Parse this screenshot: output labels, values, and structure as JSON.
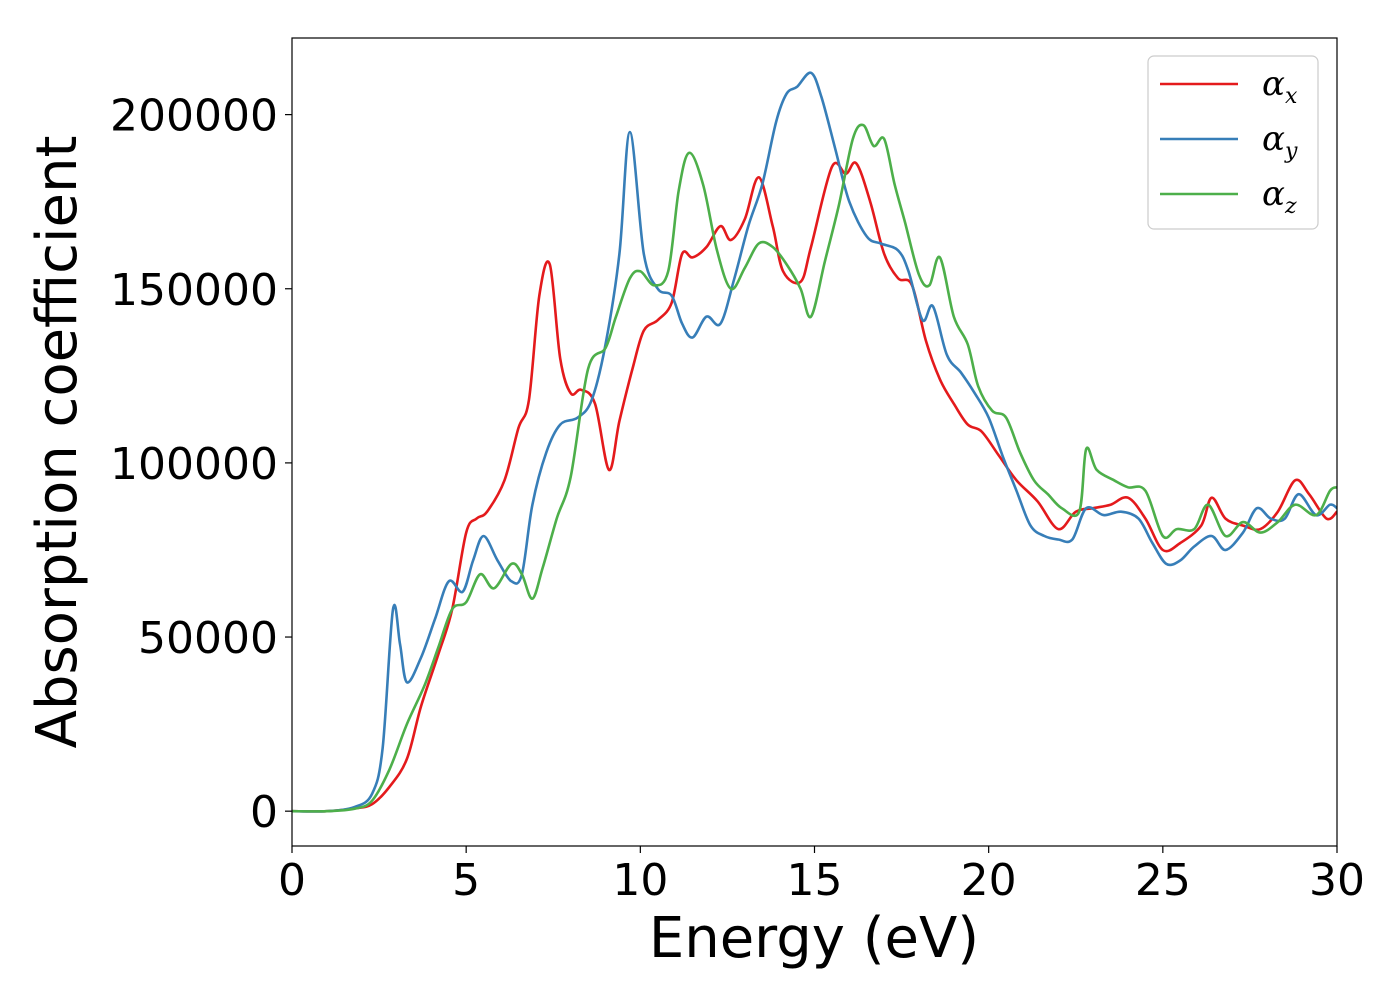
{
  "chart_data": {
    "type": "line",
    "title": "",
    "xlabel": "Energy (eV)",
    "ylabel": "Absorption coefficient",
    "xlim": [
      0,
      30
    ],
    "ylim": [
      -10000,
      222000
    ],
    "xticks": [
      0,
      5,
      10,
      15,
      20,
      25,
      30
    ],
    "yticks": [
      0,
      50000,
      100000,
      150000,
      200000
    ],
    "xtick_labels": [
      "0",
      "5",
      "10",
      "15",
      "20",
      "25",
      "30"
    ],
    "ytick_labels": [
      "0",
      "50000",
      "100000",
      "150000",
      "200000"
    ],
    "grid": false,
    "legend_position": "top-right",
    "series": [
      {
        "name": "αx",
        "legend_base": "α",
        "legend_sub": "x",
        "color": "#e41a1c",
        "points": [
          [
            0,
            0
          ],
          [
            1,
            0
          ],
          [
            1.8,
            800
          ],
          [
            2.3,
            2000
          ],
          [
            2.8,
            7000
          ],
          [
            3.3,
            15000
          ],
          [
            3.7,
            30000
          ],
          [
            4.2,
            45000
          ],
          [
            4.6,
            58000
          ],
          [
            5,
            80000
          ],
          [
            5.3,
            84000
          ],
          [
            5.6,
            86000
          ],
          [
            6.1,
            95000
          ],
          [
            6.5,
            110000
          ],
          [
            6.8,
            118000
          ],
          [
            7.1,
            148000
          ],
          [
            7.4,
            157000
          ],
          [
            7.7,
            130000
          ],
          [
            8,
            120000
          ],
          [
            8.3,
            121000
          ],
          [
            8.7,
            117000
          ],
          [
            9.1,
            98000
          ],
          [
            9.4,
            112000
          ],
          [
            9.8,
            128000
          ],
          [
            10.1,
            138000
          ],
          [
            10.5,
            141000
          ],
          [
            10.9,
            146000
          ],
          [
            11.2,
            160000
          ],
          [
            11.5,
            159000
          ],
          [
            11.9,
            162000
          ],
          [
            12.3,
            168000
          ],
          [
            12.6,
            164000
          ],
          [
            13,
            170000
          ],
          [
            13.4,
            182000
          ],
          [
            13.8,
            168000
          ],
          [
            14.1,
            155000
          ],
          [
            14.6,
            152000
          ],
          [
            14.9,
            162000
          ],
          [
            15.5,
            185000
          ],
          [
            15.9,
            183000
          ],
          [
            16.2,
            186000
          ],
          [
            16.6,
            175000
          ],
          [
            17,
            160000
          ],
          [
            17.4,
            153000
          ],
          [
            17.8,
            151000
          ],
          [
            18.2,
            135000
          ],
          [
            18.6,
            124000
          ],
          [
            19,
            117000
          ],
          [
            19.4,
            111000
          ],
          [
            19.8,
            109000
          ],
          [
            20.3,
            102000
          ],
          [
            20.8,
            95000
          ],
          [
            21.4,
            89000
          ],
          [
            22,
            81000
          ],
          [
            22.5,
            86000
          ],
          [
            23,
            87000
          ],
          [
            23.5,
            88000
          ],
          [
            24,
            90000
          ],
          [
            24.5,
            84000
          ],
          [
            25,
            75000
          ],
          [
            25.5,
            77000
          ],
          [
            26.1,
            82000
          ],
          [
            26.4,
            90000
          ],
          [
            26.8,
            84000
          ],
          [
            27.3,
            82000
          ],
          [
            27.8,
            81000
          ],
          [
            28.3,
            86000
          ],
          [
            28.8,
            95000
          ],
          [
            29.2,
            91000
          ],
          [
            29.7,
            84000
          ],
          [
            30,
            86000
          ]
        ]
      },
      {
        "name": "αy",
        "legend_base": "α",
        "legend_sub": "y",
        "color": "#377eb8",
        "points": [
          [
            0,
            0
          ],
          [
            1,
            0
          ],
          [
            1.8,
            1200
          ],
          [
            2.3,
            5000
          ],
          [
            2.6,
            18000
          ],
          [
            2.9,
            58000
          ],
          [
            3.1,
            48000
          ],
          [
            3.3,
            37000
          ],
          [
            3.7,
            44000
          ],
          [
            4.1,
            55000
          ],
          [
            4.5,
            66000
          ],
          [
            4.9,
            63000
          ],
          [
            5.2,
            72000
          ],
          [
            5.5,
            79000
          ],
          [
            5.9,
            72000
          ],
          [
            6.3,
            66000
          ],
          [
            6.6,
            68000
          ],
          [
            6.9,
            88000
          ],
          [
            7.3,
            103000
          ],
          [
            7.7,
            111000
          ],
          [
            8.2,
            113000
          ],
          [
            8.6,
            118000
          ],
          [
            9,
            134000
          ],
          [
            9.4,
            160000
          ],
          [
            9.7,
            195000
          ],
          [
            10.1,
            160000
          ],
          [
            10.5,
            150000
          ],
          [
            10.9,
            148000
          ],
          [
            11.2,
            140000
          ],
          [
            11.5,
            136000
          ],
          [
            11.9,
            142000
          ],
          [
            12.3,
            140000
          ],
          [
            12.7,
            153000
          ],
          [
            13.1,
            168000
          ],
          [
            13.5,
            180000
          ],
          [
            13.9,
            198000
          ],
          [
            14.2,
            206000
          ],
          [
            14.5,
            208000
          ],
          [
            14.9,
            212000
          ],
          [
            15.2,
            205000
          ],
          [
            15.6,
            190000
          ],
          [
            16,
            175000
          ],
          [
            16.5,
            165000
          ],
          [
            16.9,
            163000
          ],
          [
            17.4,
            161000
          ],
          [
            17.7,
            155000
          ],
          [
            18.1,
            141000
          ],
          [
            18.4,
            145000
          ],
          [
            18.8,
            131000
          ],
          [
            19.2,
            126000
          ],
          [
            19.6,
            120000
          ],
          [
            20,
            113000
          ],
          [
            20.4,
            102000
          ],
          [
            20.8,
            92000
          ],
          [
            21.2,
            82000
          ],
          [
            21.6,
            79000
          ],
          [
            22,
            78000
          ],
          [
            22.4,
            78000
          ],
          [
            22.8,
            87000
          ],
          [
            23.3,
            85000
          ],
          [
            23.8,
            86000
          ],
          [
            24.3,
            84000
          ],
          [
            24.7,
            77000
          ],
          [
            25.1,
            71000
          ],
          [
            25.5,
            72000
          ],
          [
            25.9,
            76000
          ],
          [
            26.4,
            79000
          ],
          [
            26.8,
            75000
          ],
          [
            27.3,
            80000
          ],
          [
            27.7,
            87000
          ],
          [
            28.1,
            84000
          ],
          [
            28.5,
            84000
          ],
          [
            28.9,
            91000
          ],
          [
            29.4,
            85000
          ],
          [
            29.8,
            88000
          ],
          [
            30,
            87000
          ]
        ]
      },
      {
        "name": "αz",
        "legend_base": "α",
        "legend_sub": "z",
        "color": "#4daf4a",
        "points": [
          [
            0,
            0
          ],
          [
            1,
            0
          ],
          [
            1.8,
            700
          ],
          [
            2.3,
            3000
          ],
          [
            2.8,
            12000
          ],
          [
            3.3,
            25000
          ],
          [
            3.8,
            36000
          ],
          [
            4.2,
            47000
          ],
          [
            4.6,
            58000
          ],
          [
            5,
            60000
          ],
          [
            5.4,
            68000
          ],
          [
            5.8,
            64000
          ],
          [
            6.3,
            71000
          ],
          [
            6.6,
            68000
          ],
          [
            6.9,
            61000
          ],
          [
            7.2,
            70000
          ],
          [
            7.6,
            84000
          ],
          [
            8,
            96000
          ],
          [
            8.5,
            127000
          ],
          [
            9,
            133000
          ],
          [
            9.3,
            142000
          ],
          [
            9.7,
            153000
          ],
          [
            10,
            155000
          ],
          [
            10.4,
            151000
          ],
          [
            10.8,
            155000
          ],
          [
            11.1,
            178000
          ],
          [
            11.4,
            189000
          ],
          [
            11.8,
            180000
          ],
          [
            12.2,
            161000
          ],
          [
            12.6,
            150000
          ],
          [
            13,
            156000
          ],
          [
            13.4,
            163000
          ],
          [
            13.8,
            162000
          ],
          [
            14.2,
            157000
          ],
          [
            14.6,
            150000
          ],
          [
            14.9,
            142000
          ],
          [
            15.3,
            158000
          ],
          [
            15.7,
            174000
          ],
          [
            16.1,
            193000
          ],
          [
            16.4,
            197000
          ],
          [
            16.7,
            191000
          ],
          [
            17,
            193000
          ],
          [
            17.3,
            180000
          ],
          [
            17.6,
            169000
          ],
          [
            18,
            154000
          ],
          [
            18.3,
            151000
          ],
          [
            18.6,
            159000
          ],
          [
            19,
            142000
          ],
          [
            19.4,
            134000
          ],
          [
            19.7,
            122000
          ],
          [
            20.1,
            115000
          ],
          [
            20.5,
            113000
          ],
          [
            20.9,
            103000
          ],
          [
            21.3,
            95000
          ],
          [
            21.7,
            91000
          ],
          [
            22.1,
            87000
          ],
          [
            22.6,
            86000
          ],
          [
            22.8,
            104000
          ],
          [
            23.1,
            98000
          ],
          [
            23.6,
            95000
          ],
          [
            24,
            93000
          ],
          [
            24.5,
            92000
          ],
          [
            25,
            79000
          ],
          [
            25.4,
            81000
          ],
          [
            25.9,
            81000
          ],
          [
            26.3,
            88000
          ],
          [
            26.8,
            79000
          ],
          [
            27.3,
            83000
          ],
          [
            27.8,
            80000
          ],
          [
            28.3,
            83000
          ],
          [
            28.8,
            88000
          ],
          [
            29.4,
            85000
          ],
          [
            29.8,
            92000
          ],
          [
            30,
            93000
          ]
        ]
      }
    ]
  }
}
